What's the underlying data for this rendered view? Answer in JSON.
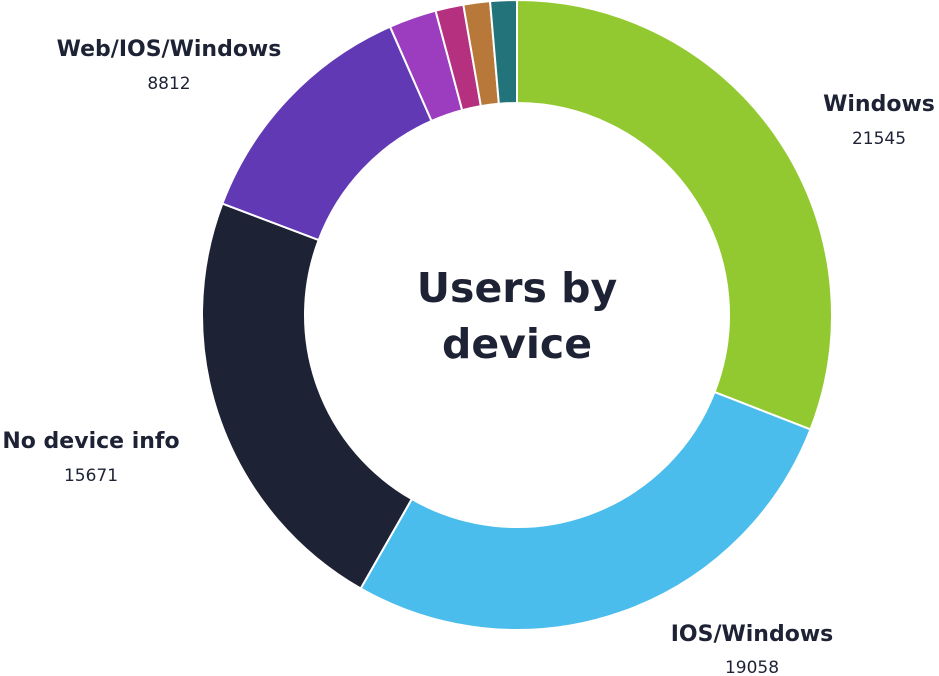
{
  "chart_data": {
    "type": "pie",
    "title": "Users by device",
    "title_lines": [
      "Users by",
      "device"
    ],
    "slices": [
      {
        "label": "Windows",
        "value": 21545,
        "value_text": "21545",
        "color": "#93c930",
        "show_label": true
      },
      {
        "label": "IOS/Windows",
        "value": 19058,
        "value_text": "19058",
        "color": "#4bbdec",
        "show_label": true
      },
      {
        "label": "No device info",
        "value": 15671,
        "value_text": "15671",
        "color": "#1e2235",
        "show_label": true
      },
      {
        "label": "Web/IOS/Windows",
        "value": 8812,
        "value_text": "8812",
        "color": "#6139b5",
        "show_label": true
      },
      {
        "label": "",
        "value": 1700,
        "value_text": "",
        "color": "#9c3dc0",
        "show_label": false
      },
      {
        "label": "",
        "value": 1000,
        "value_text": "",
        "color": "#b5307f",
        "show_label": false
      },
      {
        "label": "",
        "value": 950,
        "value_text": "",
        "color": "#b8783a",
        "show_label": false
      },
      {
        "label": "",
        "value": 950,
        "value_text": "",
        "color": "#23747a",
        "show_label": false
      }
    ],
    "legend": "none",
    "donut": true
  }
}
